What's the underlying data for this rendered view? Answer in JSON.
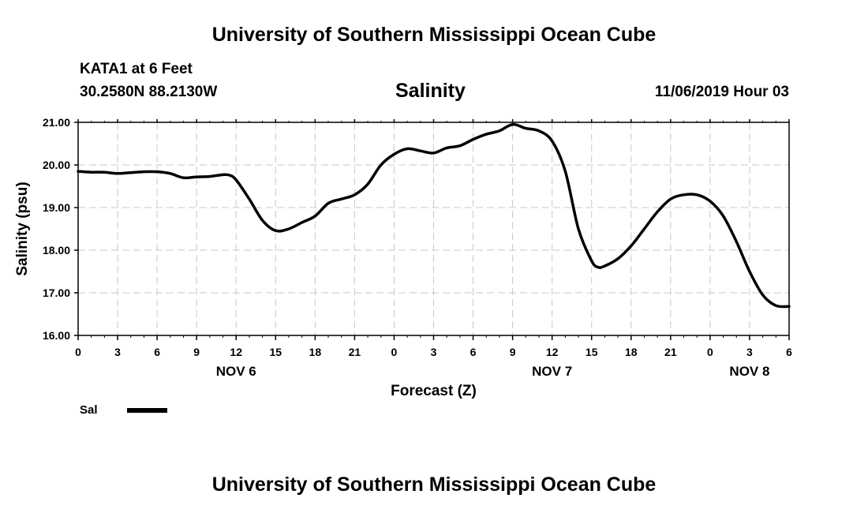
{
  "page": {
    "top_title": "University of Southern Mississippi Ocean Cube",
    "bottom_title": "University of Southern Mississippi Ocean Cube",
    "station": "KATA1 at 6 Feet",
    "coordinates": "30.2580N 88.2130W",
    "chart_title": "Salinity",
    "timestamp": "11/06/2019 Hour 03"
  },
  "legend": {
    "label": "Sal",
    "color": "#000000"
  },
  "chart_data": {
    "type": "line",
    "title": "Salinity",
    "xlabel": "Forecast (Z)",
    "ylabel": "Salinity (psu)",
    "ylim": [
      16.0,
      21.0
    ],
    "y_ticks": [
      "16.00",
      "17.00",
      "18.00",
      "19.00",
      "20.00",
      "21.00"
    ],
    "xlim": [
      0,
      54
    ],
    "x_ticks": [
      "0",
      "3",
      "6",
      "9",
      "12",
      "15",
      "18",
      "21",
      "0",
      "3",
      "6",
      "9",
      "12",
      "15",
      "18",
      "21",
      "0",
      "3",
      "6"
    ],
    "date_labels": [
      {
        "label": "NOV 6",
        "hour": 12
      },
      {
        "label": "NOV 7",
        "hour": 36
      },
      {
        "label": "NOV 8",
        "hour": 51
      }
    ],
    "grid": true,
    "series": [
      {
        "name": "Sal",
        "color": "#000000",
        "x": [
          0,
          1,
          2,
          3,
          4,
          5,
          6,
          7,
          8,
          9,
          10,
          11,
          11.5,
          12,
          13,
          14,
          15,
          16,
          17,
          18,
          19,
          20,
          21,
          22,
          23,
          24,
          25,
          26,
          27,
          28,
          29,
          30,
          31,
          32,
          33,
          34,
          35,
          36,
          37,
          38,
          39,
          39.5,
          40,
          41,
          42,
          43,
          44,
          45,
          46,
          47,
          48,
          49,
          50,
          51,
          52,
          53,
          54
        ],
        "y": [
          19.85,
          19.83,
          19.83,
          19.8,
          19.82,
          19.84,
          19.84,
          19.8,
          19.7,
          19.72,
          19.73,
          19.77,
          19.76,
          19.65,
          19.2,
          18.7,
          18.46,
          18.5,
          18.65,
          18.8,
          19.1,
          19.2,
          19.3,
          19.55,
          20.0,
          20.25,
          20.38,
          20.33,
          20.28,
          20.4,
          20.45,
          20.6,
          20.72,
          20.8,
          20.95,
          20.86,
          20.8,
          20.56,
          19.85,
          18.5,
          17.75,
          17.6,
          17.63,
          17.8,
          18.1,
          18.5,
          18.9,
          19.2,
          19.3,
          19.3,
          19.15,
          18.8,
          18.2,
          17.5,
          16.95,
          16.7,
          16.68
        ]
      }
    ]
  }
}
